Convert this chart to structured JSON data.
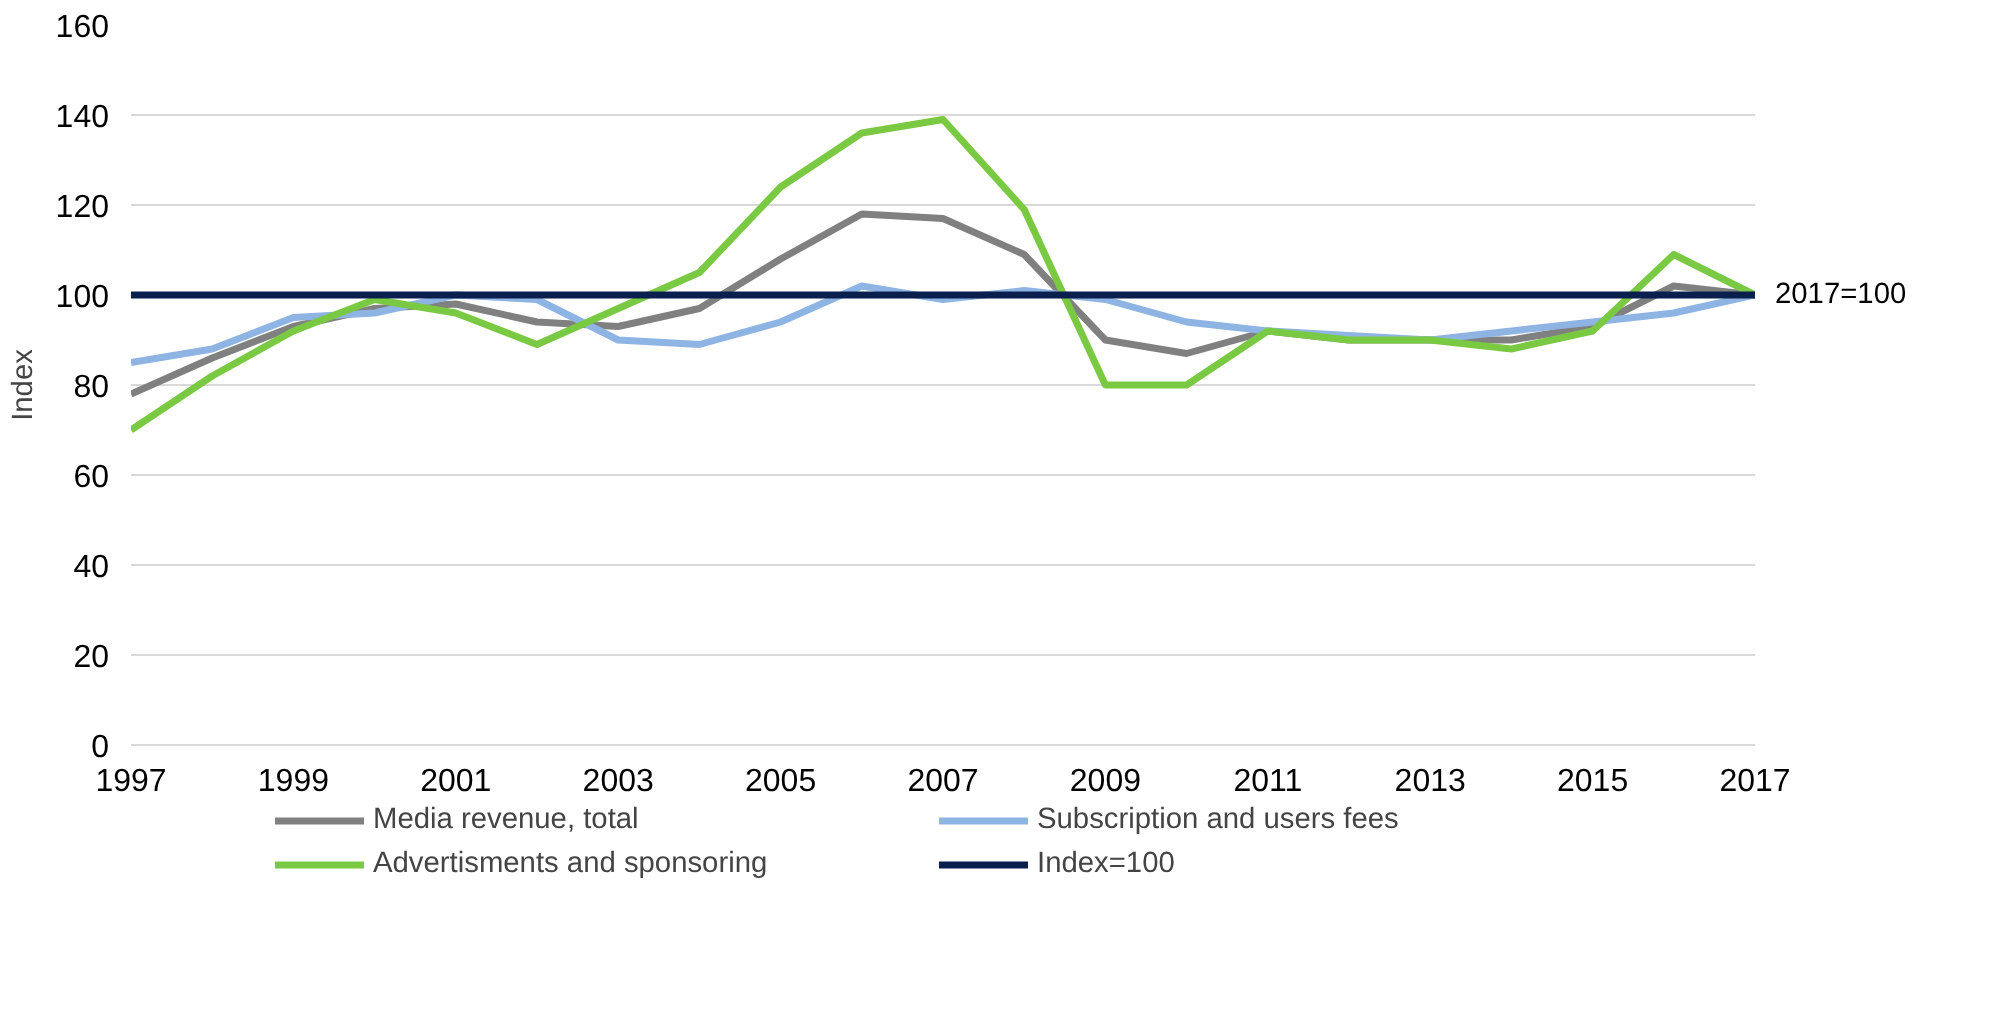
{
  "chart_data": {
    "type": "line",
    "ylabel": "Index",
    "x": [
      1997,
      1998,
      1999,
      2000,
      2001,
      2002,
      2003,
      2004,
      2005,
      2006,
      2007,
      2008,
      2009,
      2010,
      2011,
      2012,
      2013,
      2014,
      2015,
      2016,
      2017
    ],
    "series": [
      {
        "name": "Media revenue, total",
        "color": "#808080",
        "values": [
          78,
          86,
          93,
          97,
          98,
          94,
          93,
          97,
          108,
          118,
          117,
          109,
          90,
          87,
          92,
          90,
          90,
          90,
          93,
          102,
          100
        ]
      },
      {
        "name": "Subscription and users fees",
        "color": "#8eb4e3",
        "values": [
          85,
          88,
          95,
          96,
          100,
          99,
          90,
          89,
          94,
          102,
          99,
          101,
          99,
          94,
          92,
          91,
          90,
          92,
          94,
          96,
          100
        ]
      },
      {
        "name": "Advertisments and sponsoring",
        "color": "#7ac943",
        "values": [
          70,
          82,
          92,
          99,
          96,
          89,
          97,
          105,
          124,
          136,
          139,
          119,
          80,
          80,
          92,
          90,
          90,
          88,
          92,
          109,
          100
        ]
      },
      {
        "name": "Index=100",
        "color": "#0b1f4f",
        "values": [
          100,
          100,
          100,
          100,
          100,
          100,
          100,
          100,
          100,
          100,
          100,
          100,
          100,
          100,
          100,
          100,
          100,
          100,
          100,
          100,
          100
        ]
      }
    ],
    "annotations": [
      {
        "text": "2017=100",
        "x": 2017,
        "y": 100
      }
    ],
    "xlim": [
      1997,
      2017
    ],
    "xticks": [
      1997,
      1999,
      2001,
      2003,
      2005,
      2007,
      2009,
      2011,
      2013,
      2015,
      2017
    ],
    "ylim": [
      0,
      160
    ],
    "yticks": [
      0,
      20,
      40,
      60,
      80,
      100,
      120,
      140,
      160
    ],
    "grid": "y",
    "legend": "bottom",
    "marker": "none",
    "line_style": "solid"
  }
}
